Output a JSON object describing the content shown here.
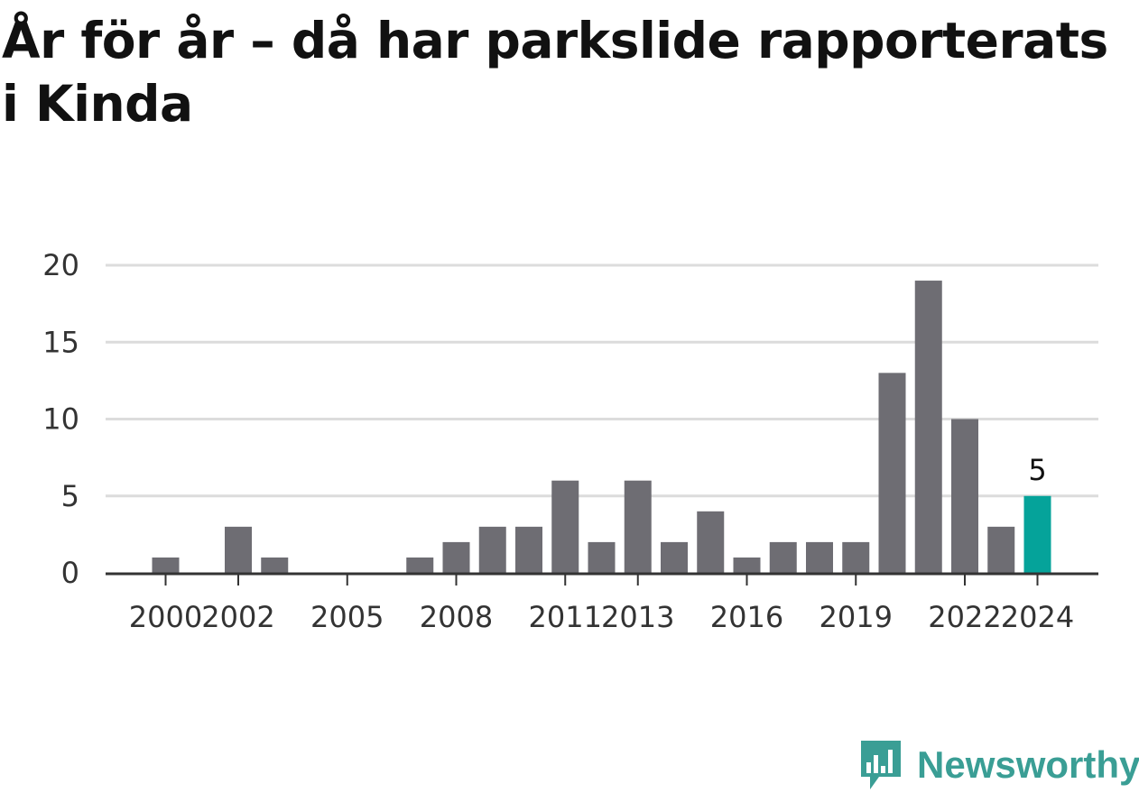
{
  "title": "År för år – då har parkslide rapporterats i Kinda",
  "brand": {
    "name": "Newsworthy",
    "color": "#3a9e95",
    "logo_icon": "newsworthy-bar-chart-bubble-icon"
  },
  "colors": {
    "bar": "#6e6d73",
    "highlight": "#05a39a",
    "grid": "#dcdcdc",
    "axis": "#333333"
  },
  "chart_data": {
    "type": "bar",
    "title": "År för år – då har parkslide rapporterats i Kinda",
    "xlabel": "",
    "ylabel": "",
    "ylim": [
      0,
      20
    ],
    "yticks": [
      0,
      5,
      10,
      15,
      20
    ],
    "grid": true,
    "categories": [
      "2000",
      "2001",
      "2002",
      "2003",
      "2004",
      "2005",
      "2006",
      "2007",
      "2008",
      "2009",
      "2010",
      "2011",
      "2012",
      "2013",
      "2014",
      "2015",
      "2016",
      "2017",
      "2018",
      "2019",
      "2020",
      "2021",
      "2022",
      "2023",
      "2024"
    ],
    "values": [
      1,
      0,
      3,
      1,
      0,
      0,
      0,
      1,
      2,
      3,
      3,
      6,
      2,
      6,
      2,
      4,
      1,
      2,
      2,
      2,
      13,
      19,
      10,
      3,
      5
    ],
    "xtick_labels": [
      "2000",
      "2002",
      "2005",
      "2008",
      "2011",
      "2013",
      "2016",
      "2019",
      "2022",
      "2024"
    ],
    "highlight_category": "2024",
    "data_labels": [
      {
        "category": "2024",
        "text": "5"
      }
    ]
  }
}
